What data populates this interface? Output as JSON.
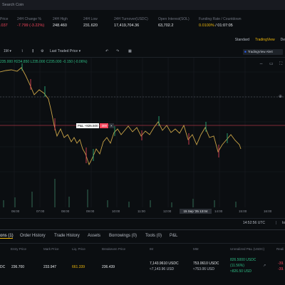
{
  "top_bar": {
    "search_placeholder": "Search Coin"
  },
  "stats": [
    {
      "label": "Price",
      "value": ".037",
      "value_color": "red"
    },
    {
      "label": "24H Change %",
      "value": "-7.799 (-3.22%)",
      "value_color": "red"
    },
    {
      "label": "24H High",
      "value": "248.460"
    },
    {
      "label": "24H Low",
      "value": "231.620"
    },
    {
      "label": "24H Turnover(USDC)",
      "value": "17,419,704.36"
    },
    {
      "label": "Open Interest(SOL)",
      "value": "63,702.2"
    },
    {
      "label": "Funding Rate / Countdown",
      "value_rate": "0.0100%",
      "value_countdown": "/ 01:07:05"
    }
  ],
  "view_tabs": [
    "Standard",
    "TradingView",
    "De"
  ],
  "chart_toolbar": {
    "interval": "1M",
    "price_source": "Last Traded Price",
    "tv_alert": "TradingView Alert"
  },
  "price_readout": "235.000 H234.850 L235.000 C235.000 -0.150 (-0.06%)",
  "pnl_tag": {
    "label": "P&L +826.500",
    "qty": "300",
    "close": "×"
  },
  "x_axis": {
    "ticks": [
      "06:00",
      "07:00",
      "08:00",
      "09:00",
      "10:00",
      "11:00",
      "12:00",
      "14:00",
      "15:00",
      "16:00"
    ],
    "highlight": "15 Sep '25  13:04"
  },
  "clock": "14:52:56 UTC",
  "clock_extra": "lo",
  "bottom_tabs": [
    "ons (1)",
    "Order History",
    "Trade History",
    "Assets",
    "Borrowings (0)",
    "Tools (0)",
    "P&L"
  ],
  "positions": {
    "headers": [
      "Entry Price",
      "Mark Price",
      "Liq. Price",
      "Breakeven Price",
      "IM",
      "MM",
      "Unrealized P&L (USDC)",
      "Reali"
    ],
    "row": {
      "symbol_suffix": "DC",
      "entry_price": "236.700",
      "mark_price": "233.947",
      "liq_price": "661.339",
      "breakeven_price": "236.439",
      "im_value": "7,143.9610 USDC",
      "im_sub": "≈7,143.96 USD",
      "mm_value": "753.0610 USDC",
      "mm_sub": "≈753.06 USD",
      "upnl_value": "826.5000 USDC",
      "upnl_pct": "(11.56%)",
      "upnl_sub": "≈826.50 USD",
      "realized_1": "-39.",
      "realized_2": "-39."
    }
  },
  "colors": {
    "up": "#2ebd85",
    "down": "#f6465d",
    "accent": "#f0b90b",
    "bg": "#0b0e11"
  }
}
